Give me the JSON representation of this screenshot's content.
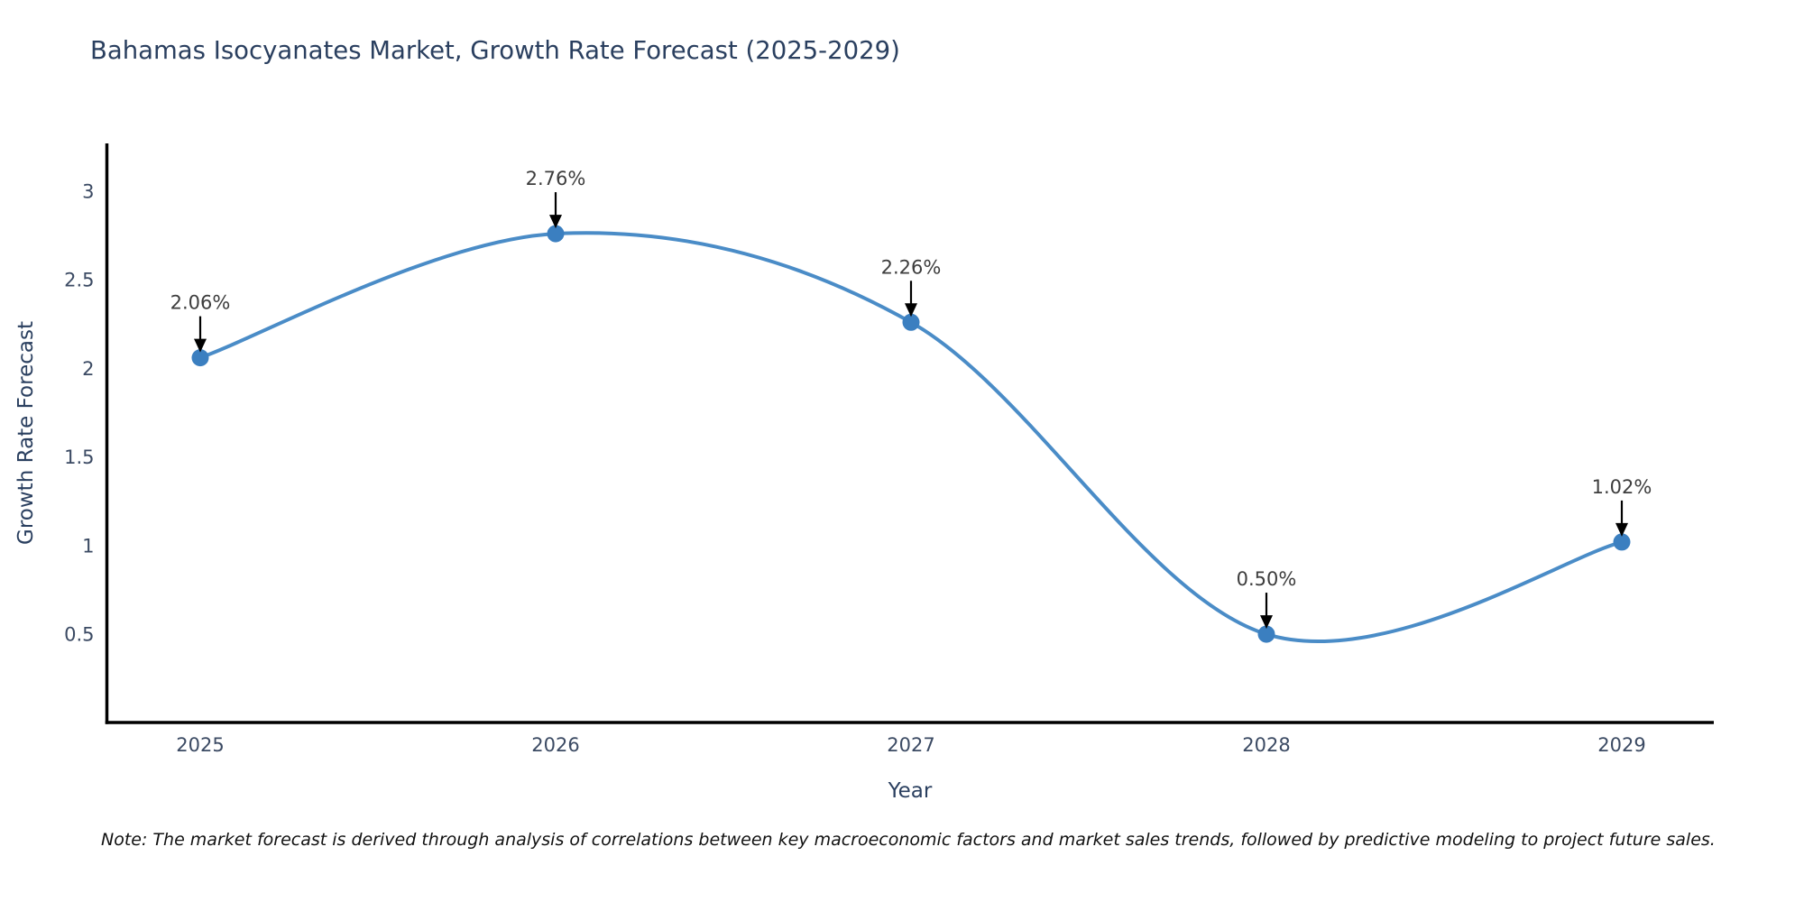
{
  "chart_data": {
    "type": "line",
    "title": "Bahamas Isocyanates Market, Growth Rate Forecast (2025-2029)",
    "xlabel": "Year",
    "ylabel": "Growth Rate Forecast",
    "categories": [
      "2025",
      "2026",
      "2027",
      "2028",
      "2029"
    ],
    "series": [
      {
        "name": "Growth Rate Forecast",
        "values": [
          2.06,
          2.76,
          2.26,
          0.5,
          1.02
        ]
      }
    ],
    "point_labels": [
      "2.06%",
      "2.76%",
      "2.26%",
      "0.50%",
      "1.02%"
    ],
    "ytick_labels": [
      "0.5",
      "1",
      "1.5",
      "2",
      "2.5",
      "3"
    ],
    "ytick_values": [
      0.5,
      1,
      1.5,
      2,
      2.5,
      3
    ],
    "ylim": [
      0,
      3.27
    ],
    "grid": false,
    "legend_position": "none",
    "line_shape": "spline",
    "marker": "circle",
    "annotation_arrows": "down",
    "colors": {
      "line": "#4a8cc7",
      "marker": "#3b7fc0",
      "axis_line": "#000000",
      "title_text": "#2a3f5f",
      "axis_title_text": "#2a3f5f",
      "tick_text": "#3b4a63",
      "annotation_text": "#3d3d3d",
      "annotation_arrow": "#000000",
      "background": "#ffffff"
    }
  },
  "note": {
    "text": "Note: The market forecast is derived through analysis of correlations between key macroeconomic factors and market sales trends, followed by predictive modeling to project future sales."
  }
}
